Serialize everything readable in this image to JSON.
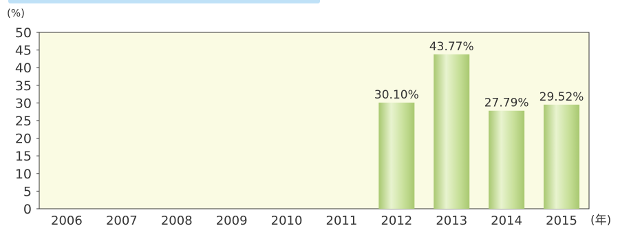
{
  "chart_data": {
    "type": "bar",
    "title": "",
    "ylabel": "(%)",
    "xunit": "(年)",
    "categories": [
      "2006",
      "2007",
      "2008",
      "2009",
      "2010",
      "2011",
      "2012",
      "2013",
      "2014",
      "2015"
    ],
    "values": [
      null,
      null,
      null,
      null,
      null,
      null,
      30.1,
      43.77,
      27.79,
      29.52
    ],
    "data_labels": [
      "",
      "",
      "",
      "",
      "",
      "",
      "30.10%",
      "43.77%",
      "27.79%",
      "29.52%"
    ],
    "ylim": [
      0,
      50
    ],
    "yticks": [
      "0",
      "5",
      "10",
      "15",
      "20",
      "25",
      "30",
      "35",
      "40",
      "45",
      "50"
    ],
    "grid": false,
    "legend": "none",
    "colors": {
      "plot_background": "#fafbe3",
      "bar_fill": "#c8e09a",
      "bar_highlight": "#e8f3cf",
      "bar_shadow": "#a8c870",
      "axis": "#333333"
    }
  }
}
